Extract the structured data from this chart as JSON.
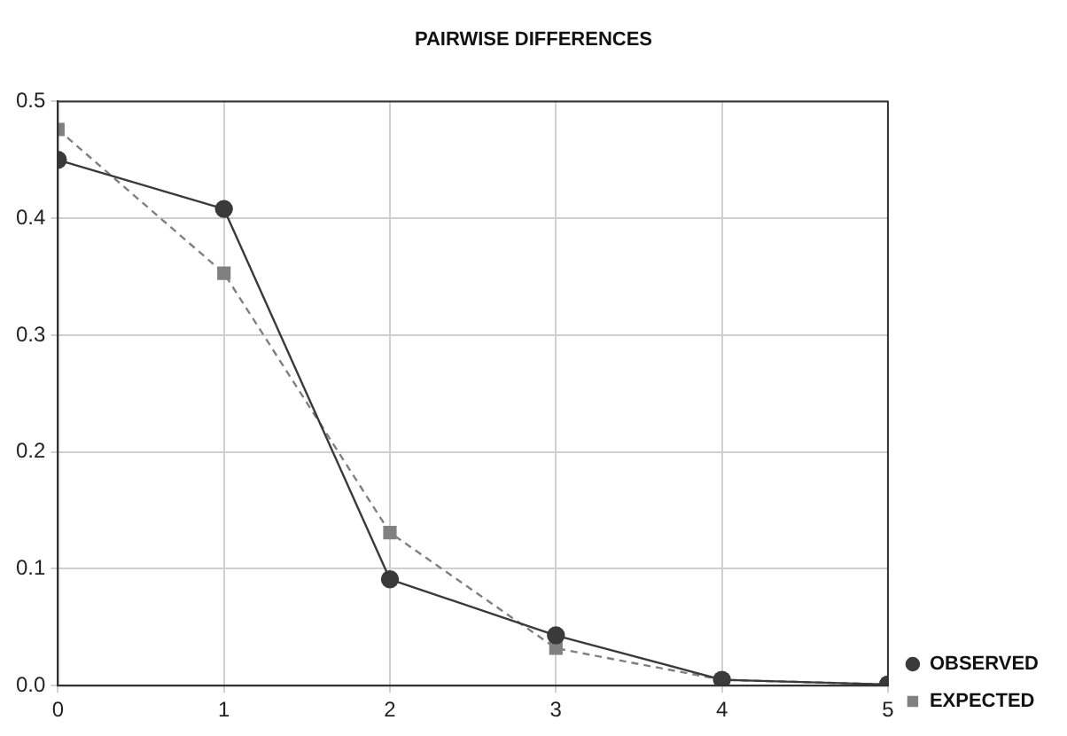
{
  "chart_data": {
    "type": "line",
    "title": "PAIRWISE DIFFERENCES",
    "x": [
      0,
      1,
      2,
      3,
      4,
      5
    ],
    "series": [
      {
        "name": "OBSERVED",
        "color": "#3a3a3a",
        "marker": "circle",
        "line_style": "solid",
        "values": [
          0.45,
          0.408,
          0.091,
          0.043,
          0.005,
          0.001
        ]
      },
      {
        "name": "EXPECTED",
        "color": "#808080",
        "marker": "square",
        "line_style": "dashed",
        "values": [
          0.476,
          0.353,
          0.131,
          0.032,
          0.005,
          0.001
        ]
      }
    ],
    "xlim": [
      0,
      5
    ],
    "xticks": [
      0,
      1,
      2,
      3,
      4,
      5
    ],
    "ylim": [
      0,
      0.5
    ],
    "yticks": [
      {
        "value": 0,
        "label": "0.0"
      },
      0.1,
      0.2,
      0.3,
      0.4,
      0.5
    ],
    "grid": true,
    "legend": "bottom right"
  }
}
